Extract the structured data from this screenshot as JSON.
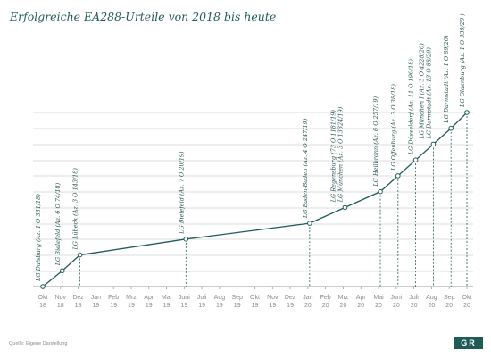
{
  "chart_data": {
    "type": "line",
    "title": "Erfolgreiche EA288-Urteile von 2018 bis heute",
    "x_ticks": [
      {
        "month": "Okt",
        "year": "18"
      },
      {
        "month": "Nov",
        "year": "18"
      },
      {
        "month": "Dez",
        "year": "18"
      },
      {
        "month": "Jan",
        "year": "19"
      },
      {
        "month": "Feb",
        "year": "19"
      },
      {
        "month": "Mrz",
        "year": "19"
      },
      {
        "month": "Apr",
        "year": "19"
      },
      {
        "month": "Mai",
        "year": "19"
      },
      {
        "month": "Juni",
        "year": "19"
      },
      {
        "month": "Juli",
        "year": "19"
      },
      {
        "month": "Aug",
        "year": "19"
      },
      {
        "month": "Sep",
        "year": "19"
      },
      {
        "month": "Okt",
        "year": "19"
      },
      {
        "month": "Nov",
        "year": "19"
      },
      {
        "month": "Dez",
        "year": "19"
      },
      {
        "month": "Jan",
        "year": "20"
      },
      {
        "month": "Feb",
        "year": "20"
      },
      {
        "month": "Mrz",
        "year": "20"
      },
      {
        "month": "Apr",
        "year": "20"
      },
      {
        "month": "Mai",
        "year": "20"
      },
      {
        "month": "Juni",
        "year": "20"
      },
      {
        "month": "Juli",
        "year": "20"
      },
      {
        "month": "Aug",
        "year": "20"
      },
      {
        "month": "Sep",
        "year": "20"
      },
      {
        "month": "Okt",
        "year": "20"
      }
    ],
    "y_count_range": [
      0,
      12
    ],
    "grid": true,
    "points": [
      {
        "month_index": 0.0,
        "count": 0,
        "label": "LG Duisburg (Az. 1 O 331/18)"
      },
      {
        "month_index": 1.1,
        "count": 1,
        "label": "LG Bielefeld (Az. 6 O 74/18)"
      },
      {
        "month_index": 2.1,
        "count": 2,
        "label": "LG Lübeck (Az. 3 O 143/18)"
      },
      {
        "month_index": 8.1,
        "count": 3,
        "label": "LG Bielefeld (Az. 7 O 20/19)"
      },
      {
        "month_index": 15.1,
        "count": 4,
        "label": "LG Baden-Baden (Az. 4 O 247/19)"
      },
      {
        "month_index": 17.1,
        "count": 5,
        "label": "LG Regensburg (73 O 1181/19)\nLG München (Az. 3 O 13324/19)"
      },
      {
        "month_index": 19.1,
        "count": 6,
        "label": "LG Heilbronn (Az. 6 O 257/19)"
      },
      {
        "month_index": 20.1,
        "count": 7,
        "label": "LG Offenburg (Az. 3 O 38/18)"
      },
      {
        "month_index": 21.1,
        "count": 8,
        "label": "LG Düsseldorf (Az. 11 O 190/18)"
      },
      {
        "month_index": 22.1,
        "count": 9,
        "label": "LG München I (Az. 3 O 4228/20)\nLG Darmstadt (Az. 13 O 88/20)"
      },
      {
        "month_index": 23.1,
        "count": 10,
        "label": "LG Darmstadt (Az. 1 O 89/20)"
      },
      {
        "month_index": 24.0,
        "count": 11,
        "label": "LG Oldenburg (Az. 1 O 939/20 )"
      }
    ]
  },
  "footer": {
    "source": "Quelle: Eigene Darstellung",
    "logo_text": "GR"
  },
  "colors": {
    "line": "#1f5c58",
    "grid": "#d3d3d3",
    "axis": "#9a9a9a",
    "title": "#1f5c58"
  }
}
